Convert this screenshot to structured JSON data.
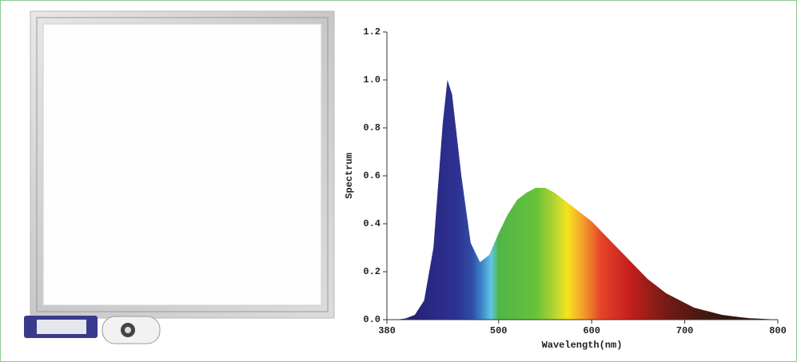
{
  "chart_data": {
    "type": "area",
    "x_label": "Wavelength(nm)",
    "y_label": "Spectrum",
    "x": [
      380,
      390,
      400,
      410,
      420,
      430,
      440,
      445,
      450,
      460,
      470,
      480,
      490,
      500,
      510,
      520,
      530,
      540,
      550,
      560,
      570,
      580,
      590,
      600,
      610,
      620,
      630,
      640,
      650,
      660,
      670,
      680,
      690,
      700,
      710,
      720,
      730,
      740,
      750,
      760,
      770,
      780,
      790,
      800
    ],
    "values": [
      0,
      0,
      0.005,
      0.02,
      0.08,
      0.3,
      0.82,
      1.0,
      0.94,
      0.6,
      0.32,
      0.24,
      0.27,
      0.36,
      0.44,
      0.5,
      0.53,
      0.55,
      0.55,
      0.53,
      0.5,
      0.47,
      0.44,
      0.41,
      0.37,
      0.33,
      0.29,
      0.25,
      0.21,
      0.17,
      0.14,
      0.11,
      0.09,
      0.07,
      0.05,
      0.04,
      0.03,
      0.02,
      0.015,
      0.01,
      0.006,
      0.004,
      0.002,
      0
    ],
    "xlim": [
      380,
      800
    ],
    "xticks": [
      380,
      500,
      600,
      700,
      800
    ],
    "ylim": [
      0,
      1.2
    ],
    "yticks": [
      {
        "value": 0,
        "label": "0.0"
      },
      0.2,
      0.4,
      0.6,
      0.8,
      {
        "value": 1,
        "label": "1.0"
      },
      1.2
    ],
    "grid": false
  }
}
